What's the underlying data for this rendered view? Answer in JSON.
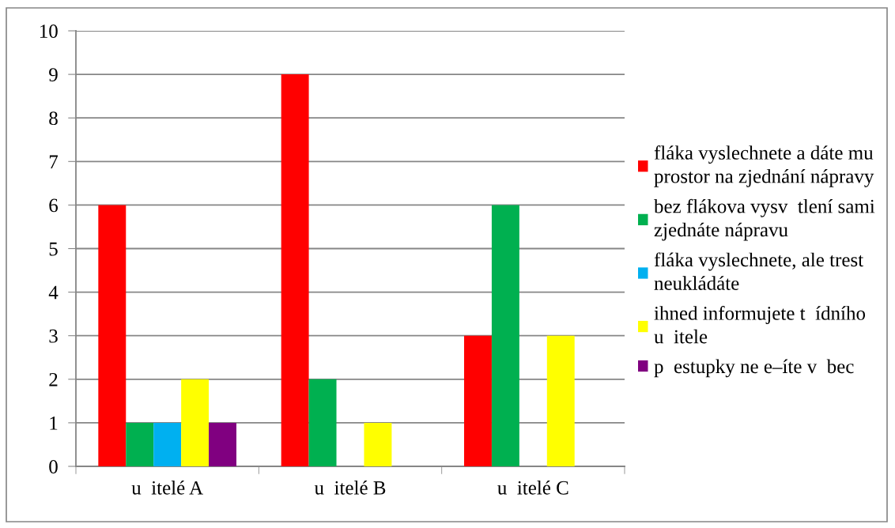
{
  "chart_data": {
    "type": "bar",
    "categories": [
      "u  itelé A",
      "u  itelé B",
      "u  itelé C"
    ],
    "series": [
      {
        "name": "fláka vyslechnete a dáte mu\nprostor na zjednání nápravy",
        "color": "#ff0000",
        "values": [
          6,
          9,
          3
        ]
      },
      {
        "name": "bez flákova vysv  tlení sami\nzjednáte nápravu",
        "color": "#00b050",
        "values": [
          1,
          2,
          6
        ]
      },
      {
        "name": "fláka vyslechnete, ale trest\nneukládáte",
        "color": "#00b0f0",
        "values": [
          1,
          null,
          null
        ]
      },
      {
        "name": "ihned informujete t  ídního\nu  itele",
        "color": "#ffff00",
        "values": [
          2,
          1,
          3
        ]
      },
      {
        "name": "p  estupky ne e–íte v  bec",
        "color": "#800080",
        "values": [
          1,
          null,
          null
        ]
      }
    ],
    "ylim": [
      0,
      10
    ],
    "yticks": [
      0,
      1,
      2,
      3,
      4,
      5,
      6,
      7,
      8,
      9,
      10
    ],
    "grid": "y",
    "legend": "right"
  }
}
